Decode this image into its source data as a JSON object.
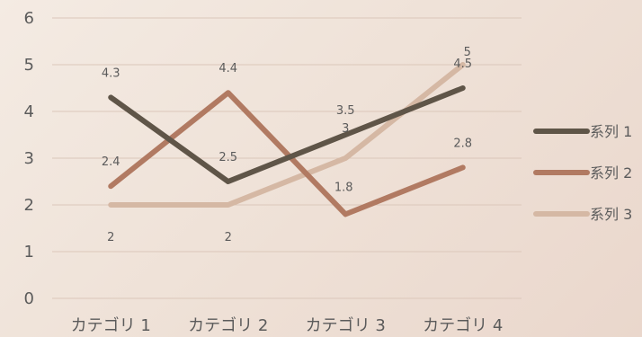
{
  "chart_data": {
    "type": "line",
    "categories": [
      "カテゴリ 1",
      "カテゴリ 2",
      "カテゴリ 3",
      "カテゴリ 4"
    ],
    "series": [
      {
        "name": "系列 1",
        "values": [
          4.3,
          2.5,
          3.5,
          4.5
        ],
        "labels": [
          "4.3",
          "2.5",
          "3.5",
          "4.5"
        ],
        "color": "#5f5548"
      },
      {
        "name": "系列 2",
        "values": [
          2.4,
          4.4,
          1.8,
          2.8
        ],
        "labels": [
          "2.4",
          "4.4",
          "1.8",
          "2.8"
        ],
        "color": "#b17a62"
      },
      {
        "name": "系列 3",
        "values": [
          2,
          2,
          3,
          5
        ],
        "labels": [
          "2",
          "2",
          "3",
          "5"
        ],
        "color": "#d5b8a4"
      }
    ],
    "y_ticks": [
      "0",
      "1",
      "2",
      "3",
      "4",
      "5",
      "6"
    ],
    "ylim": [
      0,
      6
    ],
    "grid": true,
    "legend_position": "right",
    "title": "",
    "xlabel": "",
    "ylabel": ""
  }
}
